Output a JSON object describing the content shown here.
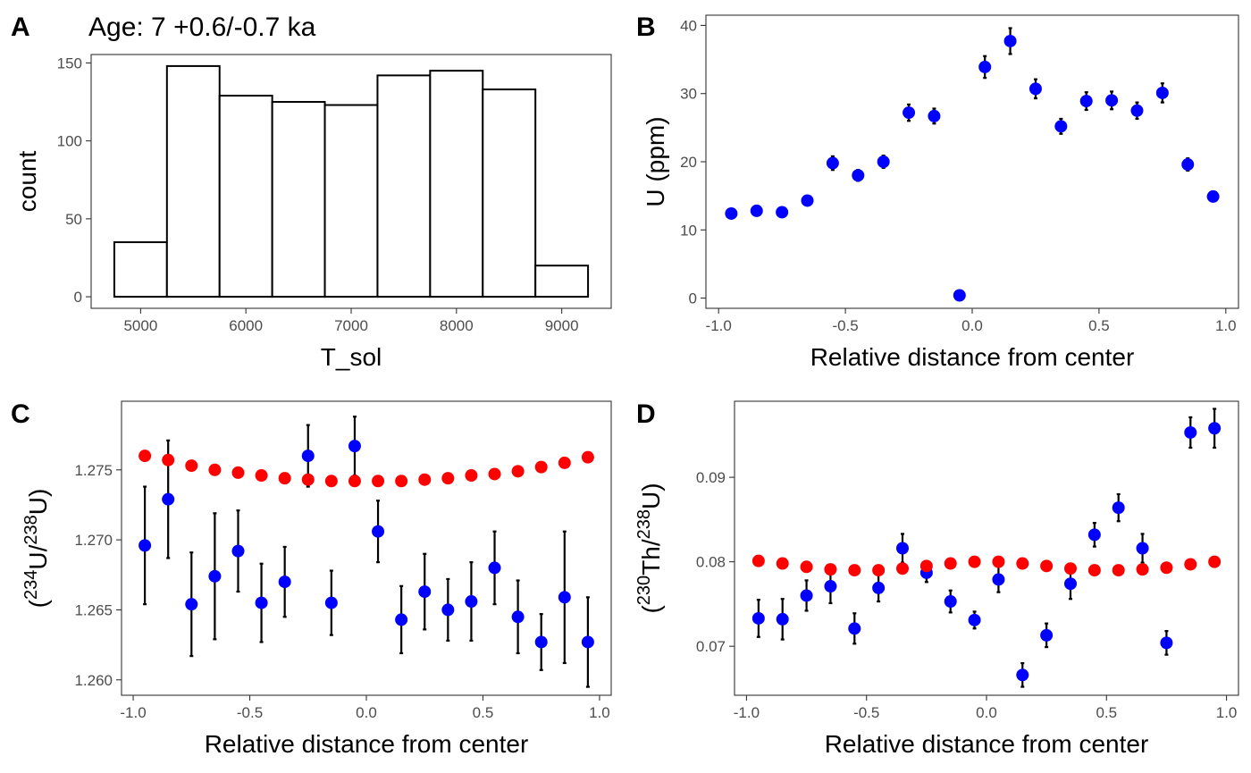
{
  "colors": {
    "measured": "#0000FF",
    "model": "#FF0000",
    "errorbar": "#000000",
    "bar_fill": "#FFFFFF",
    "bar_stroke": "#000000"
  },
  "chart_data": [
    {
      "panel": "A",
      "type": "bar",
      "title": "Age: 7 +0.6/-0.7 ka",
      "xlabel": "T_sol",
      "ylabel": "count",
      "bins": [
        {
          "x0": 4750,
          "x1": 5250,
          "count": 35
        },
        {
          "x0": 5250,
          "x1": 5750,
          "count": 148
        },
        {
          "x0": 5750,
          "x1": 6250,
          "count": 129
        },
        {
          "x0": 6250,
          "x1": 6750,
          "count": 125
        },
        {
          "x0": 6750,
          "x1": 7250,
          "count": 123
        },
        {
          "x0": 7250,
          "x1": 7750,
          "count": 142
        },
        {
          "x0": 7750,
          "x1": 8250,
          "count": 145
        },
        {
          "x0": 8250,
          "x1": 8750,
          "count": 133
        },
        {
          "x0": 8750,
          "x1": 9250,
          "count": 20
        }
      ],
      "xlim": [
        4530,
        9470
      ],
      "ylim": [
        -7.4,
        155.4
      ],
      "xticks": [
        5000,
        6000,
        7000,
        8000,
        9000
      ],
      "xtick_labels": [
        "5000",
        "6000",
        "7000",
        "8000",
        "9000"
      ],
      "yticks": [
        0,
        50,
        100,
        150
      ],
      "ytick_labels": [
        "0",
        "50",
        "100",
        "150"
      ],
      "grid": false
    },
    {
      "panel": "B",
      "type": "scatter",
      "title": "",
      "xlabel": "Relative distance from center",
      "ylabel": "U (ppm)",
      "series": [
        {
          "x": [
            -0.95,
            -0.85,
            -0.75,
            -0.65,
            -0.55,
            -0.45,
            -0.35,
            -0.25,
            -0.15,
            -0.05,
            0.05,
            0.15,
            0.25,
            0.35,
            0.45,
            0.55,
            0.65,
            0.75,
            0.85,
            0.95
          ],
          "y": [
            12.4,
            12.8,
            12.6,
            14.3,
            19.8,
            18.0,
            20.0,
            27.2,
            26.7,
            0.4,
            33.9,
            37.7,
            30.7,
            25.2,
            28.9,
            29.0,
            27.5,
            30.1,
            19.6,
            14.9
          ],
          "err": [
            0.5,
            0.5,
            0.5,
            0.6,
            1.0,
            0.8,
            0.9,
            1.2,
            1.1,
            0,
            1.6,
            1.9,
            1.4,
            1.1,
            1.3,
            1.3,
            1.2,
            1.4,
            0.9,
            0.6
          ]
        }
      ],
      "xlim": [
        -1.05,
        1.05
      ],
      "ylim": [
        -1.5,
        41.5
      ],
      "xticks": [
        -1.0,
        -0.5,
        0.0,
        0.5,
        1.0
      ],
      "xtick_labels": [
        "-1.0",
        "-0.5",
        "0.0",
        "0.5",
        "1.0"
      ],
      "yticks": [
        0,
        10,
        20,
        30,
        40
      ],
      "ytick_labels": [
        "0",
        "10",
        "20",
        "30",
        "40"
      ],
      "grid": false
    },
    {
      "panel": "C",
      "type": "scatter",
      "title": "",
      "xlabel": "Relative distance from center",
      "ylabel": "(234U/238U)",
      "ylabel_parts": {
        "open": "(",
        "sup1": "234",
        "base1": "U/",
        "sup2": "238",
        "base2": "U)"
      },
      "series": [
        {
          "x": [
            -0.95,
            -0.85,
            -0.75,
            -0.65,
            -0.55,
            -0.45,
            -0.35,
            -0.25,
            -0.15,
            -0.05,
            0.05,
            0.15,
            0.25,
            0.35,
            0.45,
            0.55,
            0.65,
            0.75,
            0.85,
            0.95
          ],
          "y": [
            1.2696,
            1.2729,
            1.2654,
            1.2674,
            1.2692,
            1.2655,
            1.267,
            1.276,
            1.2655,
            1.2767,
            1.2706,
            1.2643,
            1.2663,
            1.265,
            1.2656,
            1.268,
            1.2645,
            1.2627,
            1.2659,
            1.2627
          ],
          "err": [
            0.0042,
            0.0042,
            0.0037,
            0.0045,
            0.0029,
            0.0028,
            0.0025,
            0.0022,
            0.0023,
            0.0021,
            0.0022,
            0.0024,
            0.0027,
            0.0022,
            0.0028,
            0.0026,
            0.0026,
            0.002,
            0.0047,
            0.0032
          ]
        },
        {
          "x": [
            -0.95,
            -0.85,
            -0.75,
            -0.65,
            -0.55,
            -0.45,
            -0.35,
            -0.25,
            -0.15,
            -0.05,
            0.05,
            0.15,
            0.25,
            0.35,
            0.45,
            0.55,
            0.65,
            0.75,
            0.85,
            0.95
          ],
          "y": [
            1.276,
            1.2757,
            1.2753,
            1.275,
            1.2748,
            1.2746,
            1.2744,
            1.2743,
            1.2742,
            1.2742,
            1.2742,
            1.2742,
            1.2743,
            1.2744,
            1.2746,
            1.2747,
            1.2749,
            1.2752,
            1.2755,
            1.2759
          ]
        }
      ],
      "xlim": [
        -1.05,
        1.05
      ],
      "ylim": [
        1.2589,
        1.2799
      ],
      "xticks": [
        -1.0,
        -0.5,
        0.0,
        0.5,
        1.0
      ],
      "xtick_labels": [
        "-1.0",
        "-0.5",
        "0.0",
        "0.5",
        "1.0"
      ],
      "yticks": [
        1.26,
        1.265,
        1.27,
        1.275
      ],
      "ytick_labels": [
        "1.260",
        "1.265",
        "1.270",
        "1.275"
      ],
      "grid": false
    },
    {
      "panel": "D",
      "type": "scatter",
      "title": "",
      "xlabel": "Relative distance from center",
      "ylabel": "(230Th/238U)",
      "ylabel_parts": {
        "open": "(",
        "sup1": "230",
        "base1": "Th/",
        "sup2": "238",
        "base2": "U)"
      },
      "series": [
        {
          "x": [
            -0.95,
            -0.85,
            -0.75,
            -0.65,
            -0.55,
            -0.45,
            -0.35,
            -0.25,
            -0.15,
            -0.05,
            0.05,
            0.15,
            0.25,
            0.35,
            0.45,
            0.55,
            0.65,
            0.75,
            0.85,
            0.95
          ],
          "y": [
            0.0733,
            0.0732,
            0.076,
            0.0771,
            0.0721,
            0.0769,
            0.0816,
            0.0787,
            0.0753,
            0.0731,
            0.0779,
            0.0666,
            0.0713,
            0.0774,
            0.0832,
            0.0864,
            0.0816,
            0.0704,
            0.0953,
            0.0958
          ],
          "err": [
            0.0022,
            0.0024,
            0.0018,
            0.002,
            0.0018,
            0.0016,
            0.0017,
            0.0011,
            0.0013,
            0.001,
            0.0015,
            0.0014,
            0.0014,
            0.0018,
            0.0014,
            0.0016,
            0.0017,
            0.0014,
            0.0018,
            0.0023
          ]
        },
        {
          "x": [
            -0.95,
            -0.85,
            -0.75,
            -0.65,
            -0.55,
            -0.45,
            -0.35,
            -0.25,
            -0.15,
            -0.05,
            0.05,
            0.15,
            0.25,
            0.35,
            0.45,
            0.55,
            0.65,
            0.75,
            0.85,
            0.95
          ],
          "y": [
            0.0801,
            0.0798,
            0.0794,
            0.0791,
            0.079,
            0.079,
            0.0792,
            0.0795,
            0.0798,
            0.08,
            0.08,
            0.0798,
            0.0795,
            0.0792,
            0.079,
            0.079,
            0.0791,
            0.0793,
            0.0797,
            0.08
          ]
        }
      ],
      "xlim": [
        -1.05,
        1.05
      ],
      "ylim": [
        0.0642,
        0.099
      ],
      "xticks": [
        -1.0,
        -0.5,
        0.0,
        0.5,
        1.0
      ],
      "xtick_labels": [
        "-1.0",
        "-0.5",
        "0.0",
        "0.5",
        "1.0"
      ],
      "yticks": [
        0.07,
        0.08,
        0.09
      ],
      "ytick_labels": [
        "0.07",
        "0.08",
        "0.09"
      ],
      "grid": false
    }
  ]
}
